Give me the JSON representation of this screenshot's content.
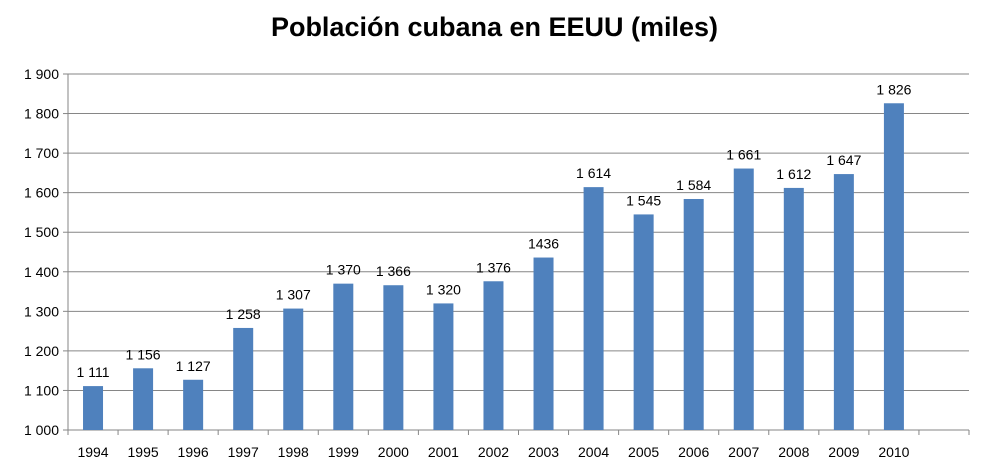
{
  "chart_data": {
    "type": "bar",
    "title": "Población cubana en EEUU (miles)",
    "xlabel": "",
    "ylabel": "",
    "categories": [
      "1994",
      "1995",
      "1996",
      "1997",
      "1998",
      "1999",
      "2000",
      "2001",
      "2002",
      "2003",
      "2004",
      "2005",
      "2006",
      "2007",
      "2008",
      "2009",
      "2010"
    ],
    "values": [
      1111,
      1156,
      1127,
      1258,
      1307,
      1370,
      1366,
      1320,
      1376,
      1436,
      1614,
      1545,
      1584,
      1661,
      1612,
      1647,
      1826
    ],
    "data_labels": [
      "1 111",
      "1 156",
      "1 127",
      "1 258",
      "1 307",
      "1 370",
      "1 366",
      "1 320",
      "1 376",
      "1436",
      "1 614",
      "1 545",
      "1 584",
      "1 661",
      "1 612",
      "1 647",
      "1 826"
    ],
    "ylim": [
      1000,
      1900
    ],
    "y_ticks": [
      1000,
      1100,
      1200,
      1300,
      1400,
      1500,
      1600,
      1700,
      1800,
      1900
    ],
    "y_tick_labels": [
      "1 000",
      "1 100",
      "1 200",
      "1 300",
      "1 400",
      "1 500",
      "1 600",
      "1 700",
      "1 800",
      "1 900"
    ],
    "grid": true,
    "legend": "none",
    "colors": {
      "bar": "#4F81BD",
      "grid": "#868686",
      "axis": "#868686"
    }
  }
}
